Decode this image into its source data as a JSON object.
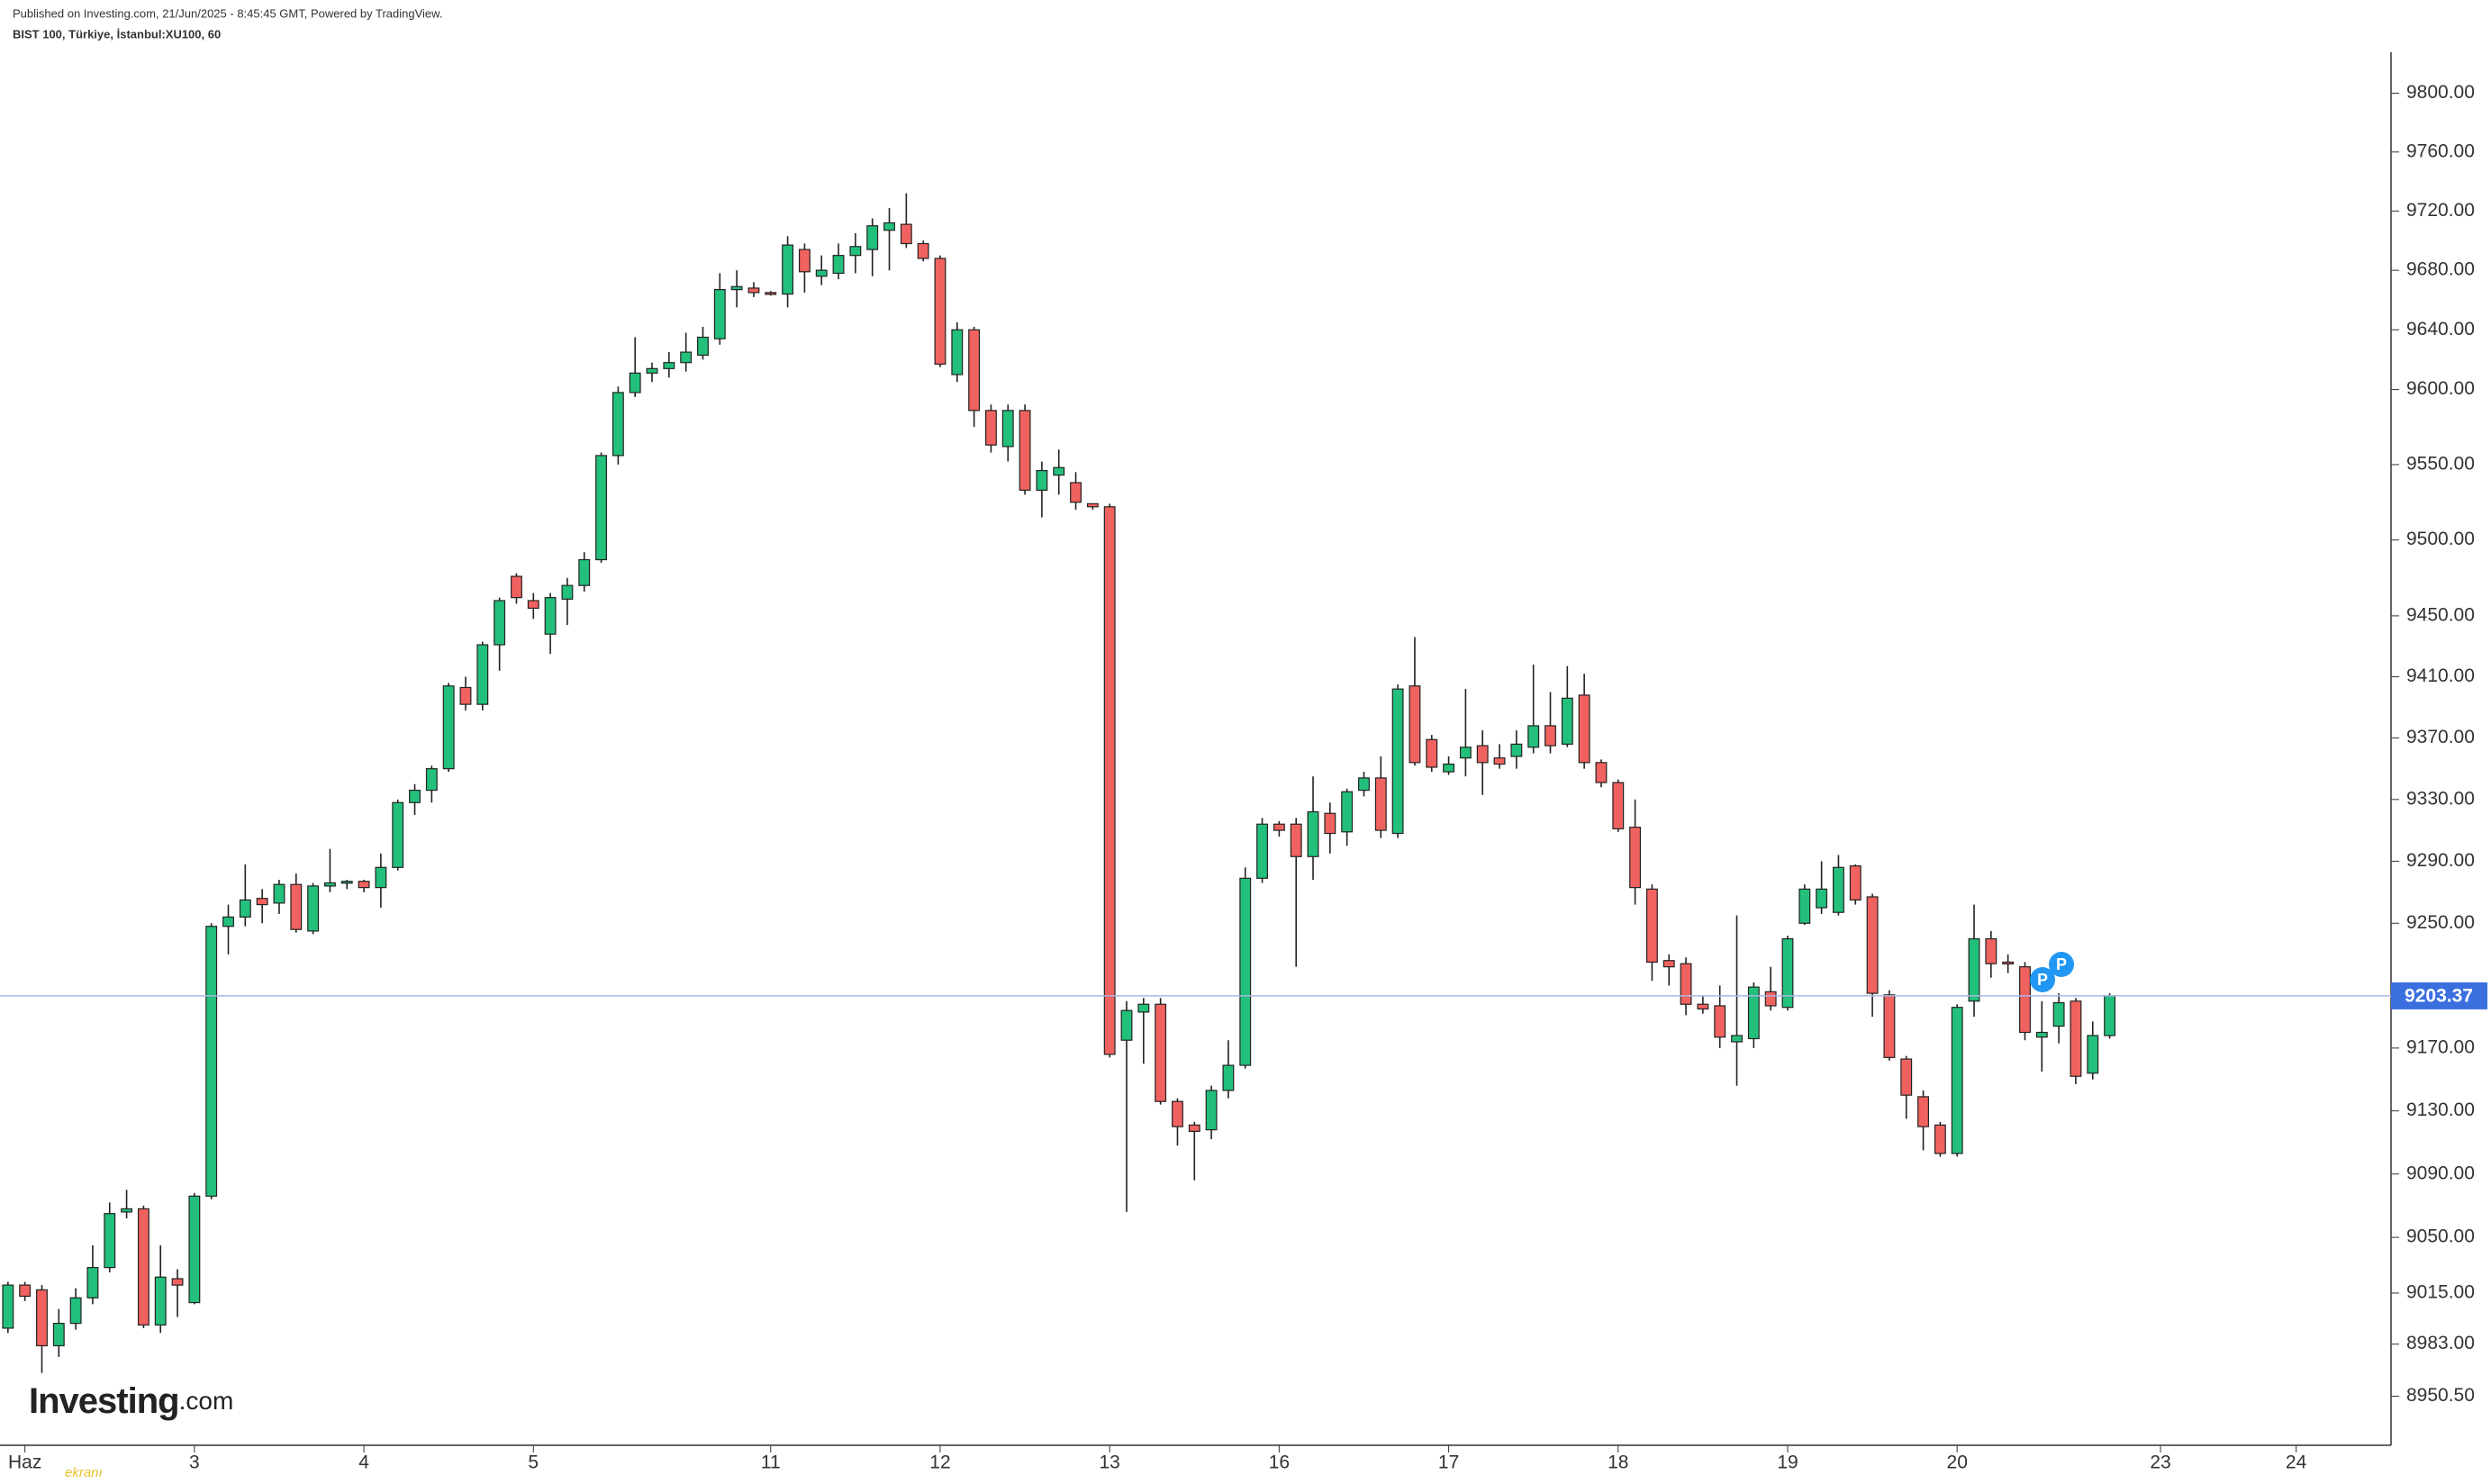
{
  "header": {
    "published": "Published on Investing.com, 21/Jun/2025 - 8:45:45 GMT, Powered by TradingView.",
    "symbol": "BIST 100, Türkiye, İstanbul:XU100, 60"
  },
  "logo": {
    "brand": "Investing",
    "suffix": ".com"
  },
  "overlay_text": "ekranı",
  "chart_data": {
    "type": "candlestick",
    "log_scale": true,
    "up_color": "#22c07a",
    "down_color": "#f0625f",
    "last_price_color": "#3b6fe0",
    "candles": [
      [
        8993,
        9022,
        8990,
        9020
      ],
      [
        9020,
        9022,
        9010,
        9013
      ],
      [
        9017,
        9020,
        8965,
        8982
      ],
      [
        8982,
        9005,
        8975,
        8996
      ],
      [
        8996,
        9018,
        8992,
        9012
      ],
      [
        9012,
        9045,
        9008,
        9031
      ],
      [
        9031,
        9072,
        9028,
        9065
      ],
      [
        9066,
        9080,
        9062,
        9068
      ],
      [
        9068,
        9070,
        8993,
        8995
      ],
      [
        8995,
        9045,
        8990,
        9025
      ],
      [
        9024,
        9030,
        9000,
        9020
      ],
      [
        9009,
        9078,
        9008,
        9076
      ],
      [
        9076,
        9250,
        9074,
        9248
      ],
      [
        9248,
        9262,
        9230,
        9254
      ],
      [
        9254,
        9288,
        9248,
        9265
      ],
      [
        9266,
        9272,
        9250,
        9262
      ],
      [
        9263,
        9278,
        9256,
        9275
      ],
      [
        9275,
        9282,
        9244,
        9246
      ],
      [
        9245,
        9276,
        9243,
        9274
      ],
      [
        9274,
        9298,
        9270,
        9276
      ],
      [
        9276,
        9278,
        9272,
        9277
      ],
      [
        9277,
        9278,
        9270,
        9273
      ],
      [
        9273,
        9295,
        9260,
        9286
      ],
      [
        9286,
        9330,
        9284,
        9328
      ],
      [
        9328,
        9340,
        9320,
        9336
      ],
      [
        9336,
        9352,
        9328,
        9350
      ],
      [
        9350,
        9406,
        9348,
        9404
      ],
      [
        9403,
        9410,
        9388,
        9392
      ],
      [
        9392,
        9433,
        9388,
        9431
      ],
      [
        9431,
        9462,
        9414,
        9460
      ],
      [
        9476,
        9478,
        9458,
        9462
      ],
      [
        9460,
        9465,
        9448,
        9455
      ],
      [
        9438,
        9465,
        9425,
        9462
      ],
      [
        9461,
        9475,
        9444,
        9470
      ],
      [
        9470,
        9492,
        9466,
        9487
      ],
      [
        9487,
        9558,
        9485,
        9556
      ],
      [
        9556,
        9602,
        9550,
        9598
      ],
      [
        9598,
        9635,
        9595,
        9611
      ],
      [
        9611,
        9618,
        9605,
        9614
      ],
      [
        9614,
        9625,
        9608,
        9618
      ],
      [
        9618,
        9638,
        9612,
        9625
      ],
      [
        9623,
        9642,
        9620,
        9635
      ],
      [
        9634,
        9678,
        9630,
        9667
      ],
      [
        9667,
        9680,
        9655,
        9669
      ],
      [
        9668,
        9672,
        9662,
        9665
      ],
      [
        9665,
        9666,
        9663,
        9664
      ],
      [
        9664,
        9703,
        9655,
        9697
      ],
      [
        9694,
        9698,
        9665,
        9679
      ],
      [
        9676,
        9690,
        9670,
        9680
      ],
      [
        9678,
        9698,
        9674,
        9690
      ],
      [
        9690,
        9705,
        9678,
        9696
      ],
      [
        9694,
        9715,
        9676,
        9710
      ],
      [
        9707,
        9722,
        9680,
        9712
      ],
      [
        9711,
        9732,
        9695,
        9698
      ],
      [
        9698,
        9700,
        9686,
        9688
      ],
      [
        9688,
        9690,
        9615,
        9617
      ],
      [
        9610,
        9645,
        9605,
        9640
      ],
      [
        9640,
        9642,
        9575,
        9586
      ],
      [
        9586,
        9590,
        9558,
        9563
      ],
      [
        9562,
        9590,
        9552,
        9586
      ],
      [
        9586,
        9590,
        9530,
        9533
      ],
      [
        9533,
        9552,
        9515,
        9546
      ],
      [
        9543,
        9560,
        9530,
        9548
      ],
      [
        9538,
        9545,
        9520,
        9525
      ],
      [
        9524,
        9524,
        9520,
        9522
      ],
      [
        9522,
        9524,
        9164,
        9166
      ],
      [
        9175,
        9200,
        9066,
        9194
      ],
      [
        9193,
        9202,
        9160,
        9198
      ],
      [
        9198,
        9202,
        9134,
        9136
      ],
      [
        9136,
        9138,
        9108,
        9120
      ],
      [
        9121,
        9123,
        9086,
        9117
      ],
      [
        9118,
        9146,
        9112,
        9143
      ],
      [
        9143,
        9175,
        9138,
        9159
      ],
      [
        9159,
        9286,
        9157,
        9279
      ],
      [
        9279,
        9318,
        9276,
        9314
      ],
      [
        9314,
        9316,
        9306,
        9310
      ],
      [
        9314,
        9318,
        9222,
        9293
      ],
      [
        9293,
        9345,
        9278,
        9322
      ],
      [
        9321,
        9328,
        9295,
        9308
      ],
      [
        9309,
        9337,
        9300,
        9335
      ],
      [
        9336,
        9348,
        9332,
        9344
      ],
      [
        9344,
        9358,
        9305,
        9310
      ],
      [
        9308,
        9405,
        9305,
        9402
      ],
      [
        9404,
        9436,
        9352,
        9354
      ],
      [
        9369,
        9372,
        9348,
        9351
      ],
      [
        9348,
        9358,
        9346,
        9353
      ],
      [
        9357,
        9402,
        9345,
        9364
      ],
      [
        9365,
        9375,
        9333,
        9354
      ],
      [
        9357,
        9366,
        9350,
        9353
      ],
      [
        9358,
        9375,
        9350,
        9366
      ],
      [
        9364,
        9418,
        9360,
        9378
      ],
      [
        9378,
        9400,
        9360,
        9365
      ],
      [
        9366,
        9417,
        9364,
        9396
      ],
      [
        9398,
        9412,
        9350,
        9354
      ],
      [
        9354,
        9356,
        9338,
        9341
      ],
      [
        9341,
        9343,
        9309,
        9311
      ],
      [
        9312,
        9330,
        9262,
        9273
      ],
      [
        9272,
        9275,
        9213,
        9225
      ],
      [
        9226,
        9230,
        9210,
        9222
      ],
      [
        9224,
        9228,
        9191,
        9198
      ],
      [
        9198,
        9203,
        9192,
        9195
      ],
      [
        9197,
        9210,
        9170,
        9177
      ],
      [
        9174,
        9255,
        9146,
        9178
      ],
      [
        9176,
        9212,
        9170,
        9209
      ],
      [
        9206,
        9222,
        9194,
        9197
      ],
      [
        9196,
        9242,
        9194,
        9240
      ],
      [
        9250,
        9275,
        9249,
        9272
      ],
      [
        9260,
        9290,
        9256,
        9272
      ],
      [
        9257,
        9294,
        9255,
        9286
      ],
      [
        9287,
        9288,
        9262,
        9265
      ],
      [
        9267,
        9269,
        9190,
        9205
      ],
      [
        9204,
        9207,
        9162,
        9164
      ],
      [
        9163,
        9165,
        9125,
        9140
      ],
      [
        9139,
        9143,
        9105,
        9120
      ],
      [
        9121,
        9123,
        9101,
        9103
      ],
      [
        9103,
        9198,
        9101,
        9196
      ],
      [
        9200,
        9262,
        9190,
        9240
      ],
      [
        9240,
        9245,
        9215,
        9224
      ],
      [
        9225,
        9230,
        9218,
        9224
      ],
      [
        9222,
        9225,
        9175,
        9180
      ],
      [
        9177,
        9200,
        9155,
        9180
      ],
      [
        9184,
        9205,
        9173,
        9199
      ],
      [
        9200,
        9202,
        9147,
        9152
      ],
      [
        9154,
        9187,
        9150,
        9178
      ],
      [
        9178,
        9205,
        9176,
        9203.37
      ]
    ],
    "last_price": 9203.37,
    "annotations": [
      "P",
      "P"
    ],
    "xlim": [
      -0.47,
      140.6
    ],
    "xticks": [
      {
        "value": 1,
        "label": "Haz"
      },
      {
        "value": 11,
        "label": "3"
      },
      {
        "value": 21,
        "label": "4"
      },
      {
        "value": 31,
        "label": "5"
      },
      {
        "value": 45,
        "label": "11"
      },
      {
        "value": 55,
        "label": "12"
      },
      {
        "value": 65,
        "label": "13"
      },
      {
        "value": 75,
        "label": "16"
      },
      {
        "value": 85,
        "label": "17"
      },
      {
        "value": 95,
        "label": "18"
      },
      {
        "value": 105,
        "label": "19"
      },
      {
        "value": 115,
        "label": "20"
      },
      {
        "value": 127,
        "label": "23"
      },
      {
        "value": 135,
        "label": "24"
      }
    ],
    "ylim": [
      8920,
      9828
    ],
    "yticks": [
      {
        "value": 9800,
        "label": "9800.00"
      },
      {
        "value": 9760,
        "label": "9760.00"
      },
      {
        "value": 9720,
        "label": "9720.00"
      },
      {
        "value": 9680,
        "label": "9680.00"
      },
      {
        "value": 9640,
        "label": "9640.00"
      },
      {
        "value": 9600,
        "label": "9600.00"
      },
      {
        "value": 9550,
        "label": "9550.00"
      },
      {
        "value": 9500,
        "label": "9500.00"
      },
      {
        "value": 9450,
        "label": "9450.00"
      },
      {
        "value": 9410,
        "label": "9410.00"
      },
      {
        "value": 9370,
        "label": "9370.00"
      },
      {
        "value": 9330,
        "label": "9330.00"
      },
      {
        "value": 9290,
        "label": "9290.00"
      },
      {
        "value": 9250,
        "label": "9250.00"
      },
      {
        "value": 9170,
        "label": "9170.00"
      },
      {
        "value": 9130,
        "label": "9130.00"
      },
      {
        "value": 9090,
        "label": "9090.00"
      },
      {
        "value": 9050,
        "label": "9050.00"
      },
      {
        "value": 9015,
        "label": "9015.00"
      },
      {
        "value": 8983,
        "label": "8983.00"
      },
      {
        "value": 8950.5,
        "label": "8950.50"
      }
    ]
  }
}
